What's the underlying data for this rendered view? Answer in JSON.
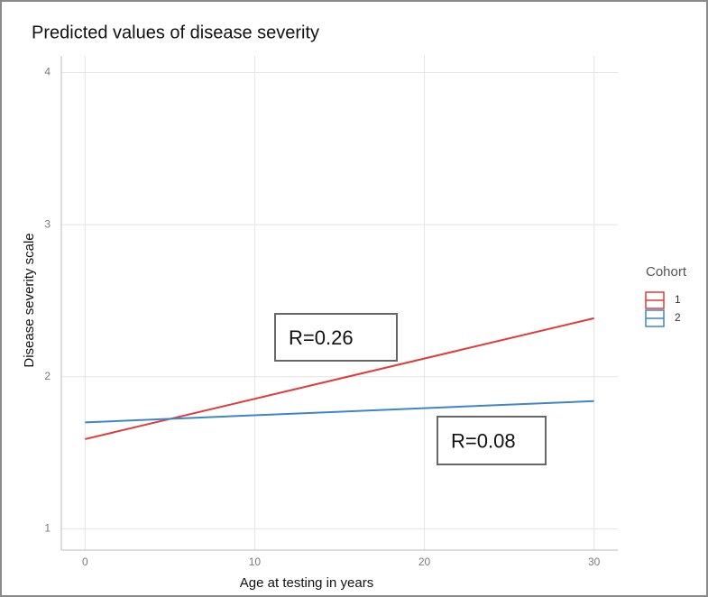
{
  "chart_data": {
    "type": "line",
    "title": "Predicted values of disease severity",
    "x_label": "Age at testing in years",
    "y_label": "Disease severity scale",
    "x": [
      0,
      30
    ],
    "series": [
      {
        "name": "1",
        "color": "#e03a3a",
        "values": [
          1.59,
          2.385
        ]
      },
      {
        "name": "2",
        "color": "#3f86c6",
        "values": [
          1.7,
          1.84
        ]
      }
    ],
    "legend_title": "Cohort",
    "annotations": [
      "R=0.26",
      "R=0.08"
    ],
    "xlim": [
      -1.4,
      31.4
    ],
    "ylim": [
      0.86,
      4.11
    ],
    "xticks": [
      0,
      10,
      20,
      30
    ],
    "yticks": [
      1,
      2,
      3,
      4
    ],
    "grid": true
  }
}
